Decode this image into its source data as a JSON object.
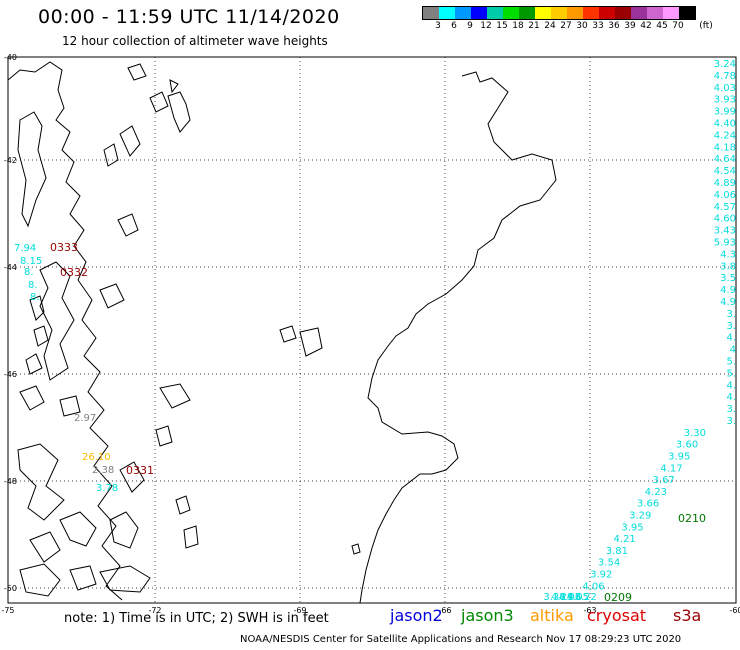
{
  "title": "00:00 - 11:59 UTC 11/14/2020",
  "subtitle": "12 hour collection of altimeter wave heights",
  "colorbar": {
    "unit": "(ft)",
    "colors": [
      "#808080",
      "#00ffff",
      "#0099ff",
      "#0000ff",
      "#00ccaa",
      "#00dd00",
      "#009900",
      "#ffff00",
      "#ffcc00",
      "#ff9900",
      "#ff3300",
      "#cc0000",
      "#990000",
      "#993399",
      "#cc66cc",
      "#ff99ff",
      "#000000"
    ],
    "labels": [
      "3",
      "6",
      "9",
      "12",
      "15",
      "18",
      "21",
      "24",
      "27",
      "30",
      "33",
      "36",
      "39",
      "42",
      "45",
      "70"
    ]
  },
  "axes": {
    "lat_labels": [
      "-40",
      "-42",
      "-44",
      "-46",
      "-48",
      "-50"
    ],
    "lon_labels": [
      "-75",
      "-72",
      "-69",
      "-66",
      "-63",
      "-60"
    ]
  },
  "tracks": {
    "cyan_east": [
      "3.24",
      "4.78",
      "4.03",
      "3.93",
      "3.99",
      "4.40",
      "4.24",
      "4.18",
      "4.64",
      "4.54",
      "4.89",
      "4.06",
      "4.57",
      "4.60",
      "3.43",
      "5.93",
      "4.3",
      "3.8",
      "3.5",
      "4.9",
      "4.9",
      "3.",
      "3.",
      "4.",
      "4",
      "5.",
      "5.",
      "4.",
      "4.",
      "3.",
      "3.",
      "3.30",
      "3.60",
      "3.95",
      "4.17",
      "3.67",
      "4.23",
      "3.66",
      "3.29",
      "3.95",
      "4.21",
      "3.81",
      "3.54",
      "3.92",
      "4.06",
      "3.22",
      "4.05",
      "4.06",
      "4.29",
      "3.38"
    ],
    "cyan_west": [
      "7.94",
      "8.15",
      "8.",
      "8.",
      "8.",
      "3.78"
    ],
    "altika": [
      "26.10"
    ],
    "grey": [
      "2.97",
      "2.38"
    ],
    "red_labels": [
      "0333",
      "0332",
      "0331"
    ],
    "green_labels": [
      "0210",
      "0209"
    ]
  },
  "note": "note: 1) Time is in UTC; 2) SWH is in feet",
  "satellites": [
    {
      "name": "jason2",
      "color": "#0000dd"
    },
    {
      "name": "jason3",
      "color": "#008800"
    },
    {
      "name": "altika",
      "color": "#ff9900"
    },
    {
      "name": "cryosat",
      "color": "#dd0000"
    },
    {
      "name": "s3a",
      "color": "#990000"
    }
  ],
  "credit": "NOAA/NESDIS Center for Satellite Applications and Research   Nov 17 08:29:23 UTC 2020"
}
